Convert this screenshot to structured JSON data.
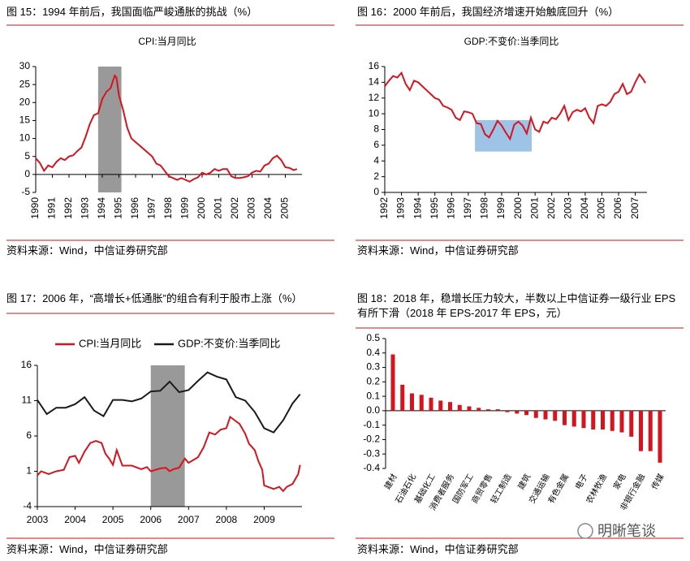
{
  "chart_data": [
    {
      "type": "line",
      "caption": "图 15：1994 年前后，我国面临严峻通胀的挑战（%）",
      "title": "CPI:当月同比",
      "source": "资料来源：Wind，中信证券研究部",
      "series": [
        {
          "color": "#d7141e",
          "x": [
            1990,
            1990.25,
            1990.5,
            1990.75,
            1991,
            1991.25,
            1991.5,
            1991.75,
            1992,
            1992.25,
            1992.5,
            1992.75,
            1993,
            1993.25,
            1993.5,
            1993.75,
            1994,
            1994.25,
            1994.5,
            1994.75,
            1994.85,
            1995,
            1995.25,
            1995.5,
            1995.75,
            1996,
            1996.25,
            1996.5,
            1996.75,
            1997,
            1997.25,
            1997.5,
            1997.75,
            1998,
            1998.25,
            1998.5,
            1998.75,
            1999,
            1999.25,
            1999.5,
            1999.75,
            2000,
            2000.25,
            2000.5,
            2000.75,
            2001,
            2001.25,
            2001.5,
            2001.75,
            2002,
            2002.25,
            2002.5,
            2002.75,
            2003,
            2003.25,
            2003.5,
            2003.75,
            2004,
            2004.25,
            2004.5,
            2004.75,
            2005,
            2005.25,
            2005.5,
            2005.7
          ],
          "values": [
            4.5,
            3.2,
            1,
            2.5,
            2,
            3.5,
            4.5,
            4,
            5,
            5.3,
            6.5,
            7.5,
            10.5,
            14,
            16.5,
            17,
            21,
            23,
            24,
            27.5,
            27,
            22,
            18,
            13,
            10,
            9,
            8,
            7,
            6,
            5,
            3,
            2.5,
            1,
            -0.5,
            -1,
            -1.5,
            -1,
            -1.5,
            -2,
            -1.3,
            -0.8,
            0.5,
            0,
            0.5,
            1.5,
            1,
            1.5,
            1.5,
            -0.5,
            -1,
            -1,
            -0.8,
            -0.5,
            0.5,
            1,
            0.8,
            2.5,
            3,
            4.5,
            5.2,
            4,
            2,
            1.8,
            1.2,
            1.5
          ]
        }
      ],
      "shade": {
        "x": [
          1993.75,
          1995.15
        ],
        "color": "#999999"
      },
      "xlim": [
        1990,
        2006
      ],
      "xticks": [
        1990,
        1991,
        1992,
        1993,
        1994,
        1995,
        1996,
        1997,
        1998,
        1999,
        2000,
        2001,
        2002,
        2003,
        2004,
        2005
      ],
      "ylim": [
        -5,
        30
      ],
      "yticks": [
        30,
        25,
        20,
        15,
        10,
        5,
        0,
        -5
      ]
    },
    {
      "type": "line",
      "caption": "图 16：2000 年前后，我国经济增速开始触底回升（%）",
      "title": "GDP:不变价:当季同比",
      "source": "资料来源：Wind，中信证券研究部",
      "series": [
        {
          "color": "#d7141e",
          "x": [
            1992,
            1992.25,
            1992.5,
            1992.75,
            1993,
            1993.25,
            1993.5,
            1993.75,
            1994,
            1994.25,
            1994.5,
            1994.75,
            1995,
            1995.25,
            1995.5,
            1995.75,
            1996,
            1996.25,
            1996.5,
            1996.75,
            1997,
            1997.25,
            1997.5,
            1997.75,
            1998,
            1998.25,
            1998.5,
            1998.75,
            1999,
            1999.25,
            1999.5,
            1999.75,
            2000,
            2000.25,
            2000.5,
            2000.75,
            2001,
            2001.25,
            2001.5,
            2001.75,
            2002,
            2002.25,
            2002.5,
            2002.75,
            2003,
            2003.25,
            2003.5,
            2003.75,
            2004,
            2004.25,
            2004.5,
            2004.75,
            2005,
            2005.25,
            2005.5,
            2005.75,
            2006,
            2006.25,
            2006.5,
            2006.75,
            2007,
            2007.25,
            2007.5,
            2007.6
          ],
          "values": [
            13.5,
            14.2,
            14.8,
            14.6,
            15.2,
            13.8,
            13,
            14.2,
            14,
            13.5,
            13,
            12.5,
            12,
            11.8,
            11,
            10.8,
            10.5,
            9.5,
            9.2,
            10.3,
            10.2,
            10,
            8.8,
            8.7,
            7.4,
            7,
            8,
            9.1,
            8.5,
            7.6,
            6.8,
            8.6,
            9,
            8.5,
            7.5,
            9.5,
            8,
            7.7,
            9,
            8.8,
            9.5,
            9.3,
            10,
            11,
            9.2,
            10.2,
            10.5,
            10.3,
            10.7,
            9.5,
            8.8,
            11,
            11.2,
            11,
            11.5,
            12.5,
            12.8,
            13.8,
            12.5,
            12.8,
            14,
            15,
            14.3,
            13.9
          ]
        }
      ],
      "shade": {
        "x": [
          1997.4,
          2000.8
        ],
        "y": [
          5.2,
          9.2
        ],
        "color": "#9dc3e6"
      },
      "xlim": [
        1992,
        2007.7
      ],
      "xticks": [
        1992,
        1993,
        1994,
        1995,
        1996,
        1997,
        1998,
        1999,
        2000,
        2001,
        2002,
        2003,
        2004,
        2005,
        2006,
        2007
      ],
      "ylim": [
        0,
        16
      ],
      "yticks": [
        16,
        14,
        12,
        10,
        8,
        6,
        4,
        2,
        0
      ]
    },
    {
      "type": "line",
      "caption": "图 17：2006 年，“高增长+低通胀”的组合有利于股市上涨（%）",
      "source": "资料来源：Wind，中信证券研究部",
      "series": [
        {
          "name": "CPI:当月同比",
          "color": "#d7141e",
          "x": [
            2003,
            2003.1,
            2003.3,
            2003.5,
            2003.7,
            2003.85,
            2004,
            2004.1,
            2004.25,
            2004.4,
            2004.55,
            2004.7,
            2004.8,
            2004.9,
            2005,
            2005.1,
            2005.25,
            2005.5,
            2005.75,
            2005.9,
            2006,
            2006.25,
            2006.4,
            2006.5,
            2006.6,
            2006.75,
            2006.9,
            2007,
            2007.25,
            2007.4,
            2007.55,
            2007.7,
            2007.85,
            2008,
            2008.1,
            2008.2,
            2008.35,
            2008.5,
            2008.6,
            2008.75,
            2008.85,
            2008.95,
            2009,
            2009.25,
            2009.4,
            2009.5,
            2009.6,
            2009.75,
            2009.9,
            2009.95
          ],
          "values": [
            0.4,
            1,
            0.6,
            1,
            1.2,
            3,
            3.2,
            2.2,
            3.8,
            5,
            5.3,
            5,
            3.5,
            2.8,
            1.9,
            4,
            1.8,
            1.8,
            1.3,
            1.6,
            1,
            1.4,
            1.5,
            1,
            1.3,
            1.5,
            2.8,
            2.2,
            3,
            4.4,
            6.5,
            6.2,
            6.9,
            7.1,
            8.7,
            8.3,
            7.7,
            6.3,
            4.9,
            4,
            2.4,
            1.2,
            -1,
            -1.5,
            -1.2,
            -1.8,
            -1.2,
            -0.8,
            0.6,
            1.9
          ]
        },
        {
          "name": "GDP:不变价:当季同比",
          "color": "#1a1a1a",
          "x": [
            2003,
            2003.25,
            2003.5,
            2003.75,
            2004,
            2004.25,
            2004.5,
            2004.75,
            2005,
            2005.25,
            2005.5,
            2005.75,
            2006,
            2006.25,
            2006.5,
            2006.75,
            2007,
            2007.25,
            2007.5,
            2007.75,
            2008,
            2008.25,
            2008.5,
            2008.75,
            2009,
            2009.25,
            2009.5,
            2009.75,
            2009.95
          ],
          "values": [
            11.1,
            9.1,
            10,
            10,
            10.5,
            11.5,
            9.6,
            8.8,
            11.1,
            11.1,
            10.9,
            11.3,
            12.3,
            12.4,
            13.7,
            12.2,
            12.5,
            13.8,
            15,
            14.4,
            14,
            11.5,
            11,
            9.4,
            7.1,
            6.5,
            8.2,
            10.6,
            11.9
          ]
        }
      ],
      "shade": {
        "x": [
          2006,
          2006.9
        ],
        "color": "#999999"
      },
      "xlim": [
        2003,
        2010
      ],
      "xticks": [
        2003,
        2004,
        2005,
        2006,
        2007,
        2008,
        2009
      ],
      "ylim": [
        -4,
        16
      ],
      "yticks": [
        16,
        11,
        6,
        1,
        -4
      ]
    },
    {
      "type": "bar",
      "caption": "图 18：2018 年，稳增长压力较大，半数以上中信证券一级行业 EPS 有所下滑（2018 年 EPS-2017 年 EPS，元）",
      "source": "资料来源：Wind，中信证券研究部",
      "categories": [
        "建材",
        null,
        "石油石化",
        null,
        "基础化工",
        null,
        "消费者服务",
        null,
        "国防军工",
        null,
        "商贸零售",
        null,
        "轻工制造",
        null,
        "建筑",
        null,
        "交通运输",
        null,
        "有色金属",
        null,
        "电子",
        null,
        "农林牧渔",
        null,
        "家电",
        null,
        "非银行金融",
        null,
        "传媒"
      ],
      "values": [
        0.39,
        0.18,
        0.12,
        0.11,
        0.09,
        0.07,
        0.06,
        0.04,
        0.03,
        0.02,
        0.01,
        0.01,
        -0.01,
        -0.02,
        -0.03,
        -0.05,
        -0.06,
        -0.07,
        -0.1,
        -0.11,
        -0.12,
        -0.13,
        -0.13,
        -0.14,
        -0.15,
        -0.18,
        -0.28,
        -0.28,
        -0.36
      ],
      "color": "#d7141e",
      "ylim": [
        -0.4,
        0.5
      ],
      "yticks": [
        0.5,
        0.4,
        0.3,
        0.2,
        0.1,
        {
          "value": 0,
          "label": "0.0"
        },
        -0.1,
        -0.2,
        -0.3,
        -0.4
      ]
    }
  ],
  "watermark": "明晰笔谈"
}
